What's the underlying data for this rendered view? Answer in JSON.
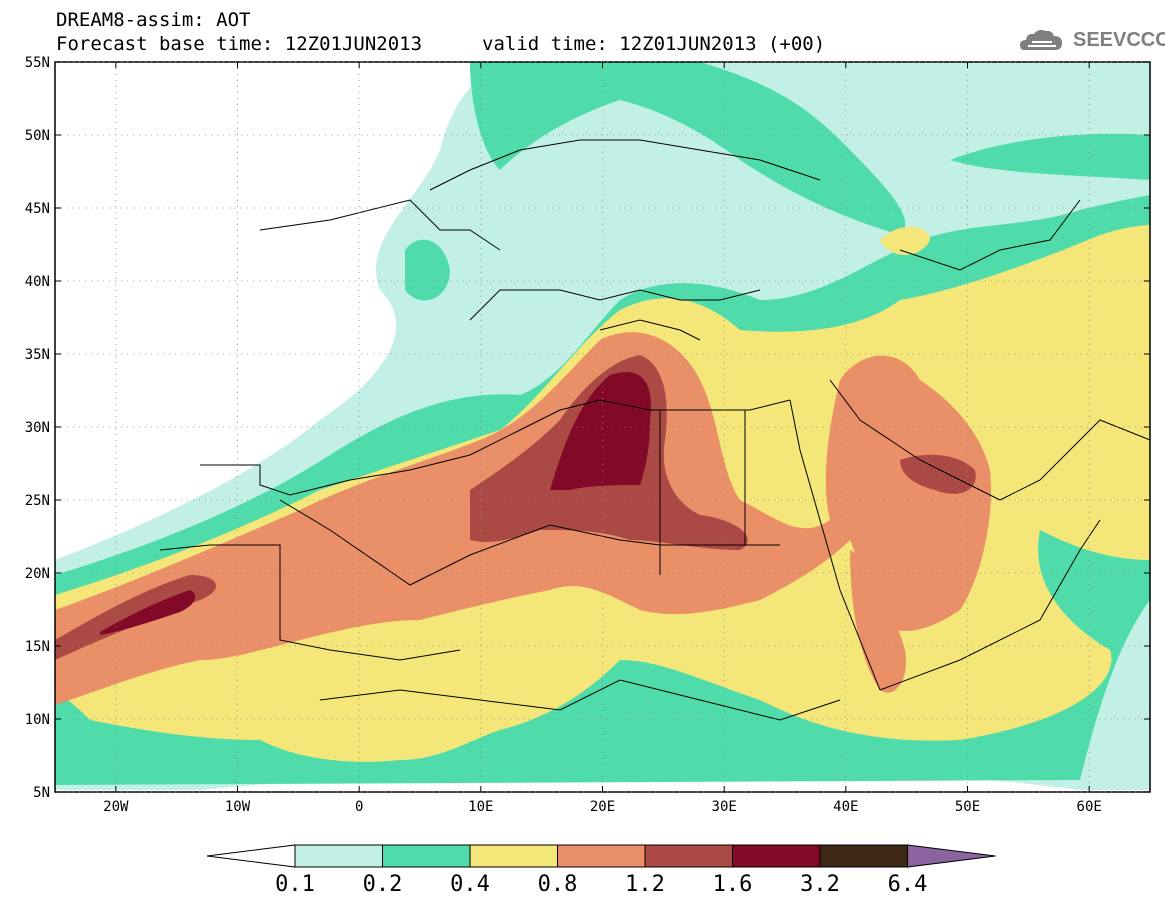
{
  "header": {
    "line1": "DREAM8-assim: AOT",
    "forecast": "Forecast base time: 12Z01JUN2013",
    "valid": "valid time: 12Z01JUN2013 (+00)"
  },
  "logo": {
    "text": "SEEVCCC",
    "icon": "cloud-icon"
  },
  "map": {
    "lon_range": [
      -25,
      65
    ],
    "lat_range": [
      5,
      55
    ],
    "lat_labels": [
      "55N",
      "50N",
      "45N",
      "40N",
      "35N",
      "30N",
      "25N",
      "20N",
      "15N",
      "10N",
      "5N"
    ],
    "lon_labels": [
      "20W",
      "10W",
      "0",
      "10E",
      "20E",
      "30E",
      "40E",
      "50E",
      "60E"
    ]
  },
  "colorbar": {
    "labels": [
      "0.1",
      "0.2",
      "0.4",
      "0.8",
      "1.2",
      "1.6",
      "3.2",
      "6.4"
    ],
    "colors": [
      "#ffffff",
      "#c3f0e6",
      "#4fdcaa",
      "#f4e678",
      "#e99068",
      "#ab4a44",
      "#820a28",
      "#3c2814",
      "#8c64a0"
    ]
  }
}
